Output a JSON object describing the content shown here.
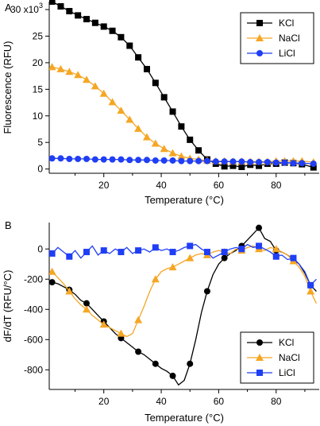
{
  "chart_data": [
    {
      "type": "line",
      "panel_label": "A",
      "xlabel": "Temperature (°C)",
      "ylabel": "Fluorescence (RFU)",
      "y_multiplier_label": "x10",
      "y_multiplier_exponent": "3",
      "xlim": [
        1,
        95
      ],
      "ylim": [
        -0.8,
        31.5
      ],
      "x_ticks": [
        20,
        40,
        60,
        80
      ],
      "y_ticks": [
        0,
        5,
        10,
        15,
        20,
        25,
        30
      ],
      "y_tick_labels": [
        "0",
        "5",
        "10",
        "15",
        "20",
        "25",
        "30"
      ],
      "legend_position": "top-right",
      "series": [
        {
          "name": "KCl",
          "color": "#000000",
          "marker": "square",
          "x": [
            2,
            5,
            8,
            11,
            14,
            17,
            20,
            23,
            26,
            29,
            32,
            35,
            38,
            41,
            44,
            47,
            50,
            53,
            56,
            59,
            62,
            65,
            68,
            71,
            74,
            77,
            80,
            83,
            86,
            89,
            93
          ],
          "y": [
            31.5,
            30.6,
            29.7,
            28.9,
            28.2,
            27.5,
            26.8,
            26.0,
            24.8,
            23.2,
            21.0,
            18.8,
            16.2,
            13.5,
            10.8,
            8.0,
            5.5,
            3.5,
            1.8,
            1.0,
            0.5,
            0.6,
            0.4,
            0.8,
            0.6,
            1.0,
            1.0,
            1.2,
            1.1,
            0.9,
            0.3
          ]
        },
        {
          "name": "NaCl",
          "color": "#f5a623",
          "marker": "triangle",
          "x": [
            2,
            5,
            8,
            11,
            14,
            17,
            20,
            23,
            26,
            29,
            32,
            35,
            38,
            41,
            44,
            47,
            50,
            53,
            56,
            59,
            62,
            65,
            68,
            71,
            74,
            77,
            80,
            83,
            86,
            89,
            93
          ],
          "y": [
            19.2,
            18.8,
            18.3,
            17.7,
            16.8,
            15.6,
            14.2,
            12.6,
            11.0,
            9.3,
            7.6,
            6.0,
            4.8,
            3.8,
            3.0,
            2.4,
            2.0,
            1.8,
            1.6,
            1.5,
            1.5,
            1.4,
            1.4,
            1.4,
            1.4,
            1.4,
            1.5,
            1.5,
            1.5,
            1.5,
            1.3
          ]
        },
        {
          "name": "LiCl",
          "color": "#1f3ef5",
          "marker": "circle",
          "x": [
            2,
            5,
            8,
            11,
            14,
            17,
            20,
            23,
            26,
            29,
            32,
            35,
            38,
            41,
            44,
            47,
            50,
            53,
            56,
            59,
            62,
            65,
            68,
            71,
            74,
            77,
            80,
            83,
            86,
            89,
            93
          ],
          "y": [
            2.0,
            2.0,
            1.9,
            1.9,
            1.9,
            1.8,
            1.8,
            1.8,
            1.8,
            1.7,
            1.7,
            1.7,
            1.6,
            1.6,
            1.6,
            1.5,
            1.5,
            1.5,
            1.5,
            1.4,
            1.4,
            1.4,
            1.4,
            1.3,
            1.3,
            1.3,
            1.2,
            1.2,
            1.1,
            1.1,
            1.0
          ]
        }
      ]
    },
    {
      "type": "line",
      "panel_label": "B",
      "xlabel": "Temperature (°C)",
      "ylabel": "dF/dT (RFU/°C)",
      "xlim": [
        1,
        95
      ],
      "ylim": [
        -930,
        175
      ],
      "x_ticks": [
        20,
        40,
        60,
        80
      ],
      "y_ticks": [
        0,
        -200,
        -400,
        -600,
        -800
      ],
      "y_tick_labels": [
        "0",
        "-200",
        "-400",
        "-600",
        "-800"
      ],
      "legend_position": "bottom-right",
      "series": [
        {
          "name": "KCl",
          "color": "#000000",
          "marker": "circle",
          "x": [
            2,
            4,
            6,
            8,
            10,
            12,
            14,
            16,
            18,
            20,
            22,
            24,
            26,
            28,
            30,
            32,
            34,
            36,
            38,
            40,
            42,
            44,
            46,
            48,
            50,
            52,
            54,
            56,
            58,
            60,
            62,
            64,
            66,
            68,
            70,
            72,
            74,
            76,
            78,
            80,
            82,
            84,
            86,
            88,
            90,
            92,
            94
          ],
          "y": [
            -220,
            -230,
            -250,
            -270,
            -300,
            -340,
            -360,
            -400,
            -440,
            -480,
            -520,
            -560,
            -590,
            -620,
            -650,
            -680,
            -700,
            -730,
            -760,
            -790,
            -810,
            -840,
            -900,
            -870,
            -760,
            -600,
            -420,
            -280,
            -170,
            -100,
            -60,
            -30,
            -10,
            20,
            60,
            100,
            140,
            70,
            50,
            -10,
            -20,
            -40,
            -70,
            -100,
            -160,
            -240,
            -280
          ]
        },
        {
          "name": "NaCl",
          "color": "#f5a623",
          "marker": "triangle",
          "x": [
            2,
            4,
            6,
            8,
            10,
            12,
            14,
            16,
            18,
            20,
            22,
            24,
            26,
            28,
            30,
            32,
            34,
            36,
            38,
            40,
            42,
            44,
            46,
            48,
            50,
            52,
            54,
            56,
            58,
            60,
            62,
            64,
            66,
            68,
            70,
            72,
            74,
            76,
            78,
            80,
            82,
            84,
            86,
            88,
            90,
            92,
            94
          ],
          "y": [
            -150,
            -190,
            -230,
            -280,
            -330,
            -370,
            -400,
            -440,
            -470,
            -500,
            -520,
            -540,
            -560,
            -580,
            -560,
            -470,
            -380,
            -280,
            -200,
            -150,
            -130,
            -120,
            -100,
            -80,
            -60,
            -40,
            -30,
            -40,
            -20,
            -10,
            -20,
            -30,
            0,
            -10,
            10,
            20,
            0,
            -10,
            10,
            0,
            -20,
            -40,
            -80,
            -120,
            -180,
            -280,
            -360
          ]
        },
        {
          "name": "LiCl",
          "color": "#1f3ef5",
          "marker": "square",
          "x": [
            2,
            4,
            6,
            8,
            10,
            12,
            14,
            16,
            18,
            20,
            22,
            24,
            26,
            28,
            30,
            32,
            34,
            36,
            38,
            40,
            42,
            44,
            46,
            48,
            50,
            52,
            54,
            56,
            58,
            60,
            62,
            64,
            66,
            68,
            70,
            72,
            74,
            76,
            78,
            80,
            82,
            84,
            86,
            88,
            90,
            92,
            94
          ],
          "y": [
            -30,
            10,
            -20,
            -50,
            -10,
            -60,
            -20,
            20,
            -40,
            -10,
            -30,
            0,
            -20,
            10,
            -30,
            -10,
            0,
            -20,
            10,
            -10,
            0,
            -20,
            -10,
            10,
            20,
            30,
            0,
            -20,
            -60,
            -40,
            -20,
            0,
            10,
            0,
            30,
            10,
            20,
            0,
            -20,
            -50,
            -40,
            -70,
            -60,
            -100,
            -150,
            -240,
            -200
          ]
        }
      ]
    }
  ]
}
